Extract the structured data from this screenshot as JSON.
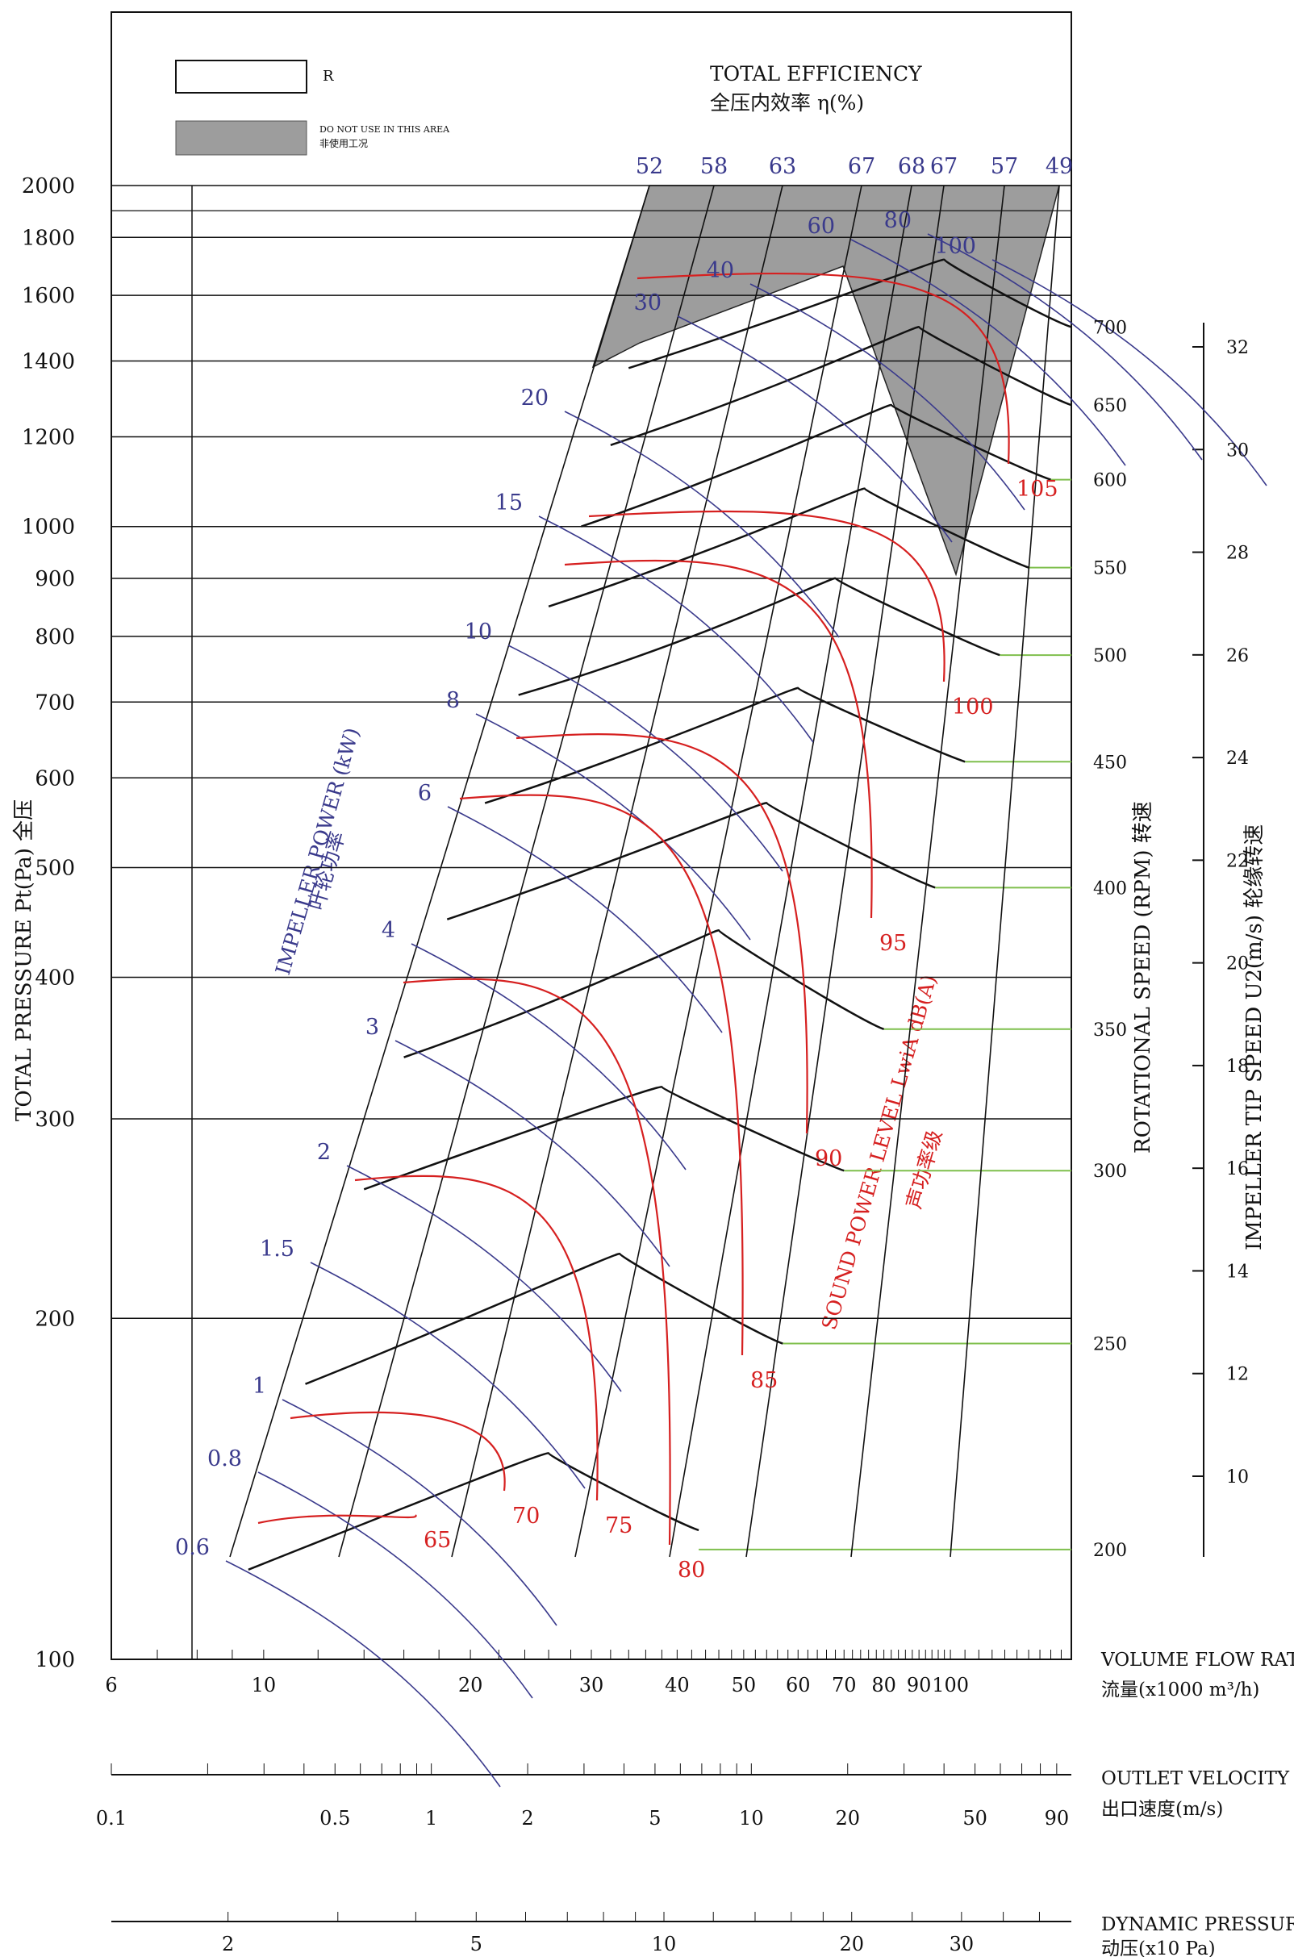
{
  "legend": {
    "rated_label": "R",
    "no_use_label_en": "DO NOT USE IN THIS AREA",
    "no_use_label_zh": "非使用工况",
    "efficiency_title_en": "TOTAL EFFICIENCY",
    "efficiency_title_zh": "全压内效率 η(%)"
  },
  "axes": {
    "y_title": "TOTAL PRESSURE Pt(Pa) 全压",
    "rpm_title": "ROTATIONAL SPEED (RPM) 转速",
    "tip_title": "IMPELLER TIP SPEED U2(m/s) 轮缘转速",
    "flow_title_en": "VOLUME FLOW RATE",
    "flow_title_zh": "流量(x1000 m³/h)",
    "velocity_title_en": "OUTLET VELOCITY",
    "velocity_title_zh": "出口速度(m/s)",
    "dyn_title_en": "DYNAMIC PRESSURE",
    "dyn_title_zh": "动压(x10 Pa)"
  },
  "curve_labels": {
    "power_en": "IMPELLER POWER (kW)",
    "power_zh": "叶轮功率",
    "sound_en": "SOUND POWER LEVEL LwiA dB(A)",
    "sound_zh": "声功率级"
  },
  "chart_data": {
    "type": "line",
    "title": "",
    "y_ticks": [
      "100",
      "200",
      "300",
      "400",
      "500",
      "600",
      "700",
      "800",
      "900",
      "1000",
      "1200",
      "1400",
      "1600",
      "1800",
      "2000"
    ],
    "y_tick_values": [
      100,
      200,
      300,
      400,
      500,
      600,
      700,
      800,
      900,
      1000,
      1200,
      1400,
      1600,
      1800,
      2000
    ],
    "ylim": [
      100,
      2000
    ],
    "y_scale": "log",
    "flow_ticks": [
      "6",
      "10",
      "20",
      "30",
      "40",
      "50",
      "60",
      "70",
      "80",
      "90",
      "100"
    ],
    "flow_tick_values": [
      6,
      10,
      20,
      30,
      40,
      50,
      60,
      70,
      80,
      90,
      100
    ],
    "flow_range": [
      6,
      150
    ],
    "x_scale": "log",
    "velocity_ticks": [
      "0.1",
      "0.5",
      "1",
      "2",
      "5",
      "10",
      "20",
      "50",
      "90"
    ],
    "velocity_tick_values": [
      0.1,
      0.5,
      1,
      2,
      5,
      10,
      20,
      50,
      90
    ],
    "dynamic_pressure_ticks": [
      "2",
      "5",
      "10",
      "20",
      "30"
    ],
    "dynamic_pressure_tick_values": [
      2,
      5,
      10,
      20,
      30
    ],
    "efficiency_top_labels": [
      "52",
      "58",
      "63",
      "67",
      "68",
      "67",
      "57",
      "49"
    ],
    "rpm_labels": [
      "200",
      "250",
      "300",
      "350",
      "400",
      "450",
      "500",
      "550",
      "600",
      "650",
      "700"
    ],
    "rpm_values": [
      200,
      250,
      300,
      350,
      400,
      450,
      500,
      550,
      600,
      650,
      700
    ],
    "rpm_pressures": [
      125,
      190,
      270,
      360,
      480,
      620,
      770,
      920,
      1100,
      1280,
      1500
    ],
    "tip_speed_labels": [
      "10",
      "12",
      "14",
      "16",
      "18",
      "20",
      "22",
      "24",
      "26",
      "28",
      "30",
      "32"
    ],
    "tip_speed_values": [
      10,
      12,
      14,
      16,
      18,
      20,
      22,
      24,
      26,
      28,
      30,
      32
    ],
    "power_labels": [
      "0.6",
      "0.8",
      "1",
      "1.5",
      "2",
      "3",
      "4",
      "6",
      "8",
      "10",
      "15",
      "20",
      "30",
      "40",
      "60",
      "80",
      "100"
    ],
    "power_values": [
      0.6,
      0.8,
      1,
      1.5,
      2,
      3,
      4,
      6,
      8,
      10,
      15,
      20,
      30,
      40,
      60,
      80,
      100
    ],
    "sound_labels": [
      "65",
      "70",
      "75",
      "80",
      "85",
      "90",
      "95",
      "100",
      "105"
    ],
    "sound_values": [
      65,
      70,
      75,
      80,
      85,
      90,
      95,
      100,
      105
    ],
    "series": [
      {
        "name": "200",
        "x": [
          9.5,
          18,
          26,
          43
        ],
        "y": [
          120,
          140,
          152,
          130
        ]
      },
      {
        "name": "250",
        "x": [
          11.5,
          20,
          33,
          57
        ],
        "y": [
          175,
          200,
          228,
          190
        ]
      },
      {
        "name": "300",
        "x": [
          14,
          25,
          38,
          70
        ],
        "y": [
          260,
          295,
          320,
          270
        ]
      },
      {
        "name": "350",
        "x": [
          16,
          29,
          46,
          80
        ],
        "y": [
          340,
          385,
          440,
          360
        ]
      },
      {
        "name": "400",
        "x": [
          18.5,
          34,
          54,
          95
        ],
        "y": [
          450,
          510,
          570,
          480
        ]
      },
      {
        "name": "450",
        "x": [
          21,
          38,
          60,
          105
        ],
        "y": [
          570,
          640,
          720,
          620
        ]
      },
      {
        "name": "500",
        "x": [
          23.5,
          43,
          68,
          118
        ],
        "y": [
          710,
          790,
          900,
          770
        ]
      },
      {
        "name": "550",
        "x": [
          26,
          48,
          75,
          130
        ],
        "y": [
          850,
          960,
          1080,
          920
        ]
      },
      {
        "name": "600",
        "x": [
          29,
          52,
          82,
          140
        ],
        "y": [
          1000,
          1130,
          1280,
          1100
        ]
      },
      {
        "name": "650",
        "x": [
          32,
          58,
          90,
          150
        ],
        "y": [
          1180,
          1330,
          1500,
          1280
        ]
      },
      {
        "name": "700",
        "x": [
          34,
          62,
          98,
          150
        ],
        "y": [
          1380,
          1550,
          1720,
          1500
        ]
      }
    ]
  }
}
